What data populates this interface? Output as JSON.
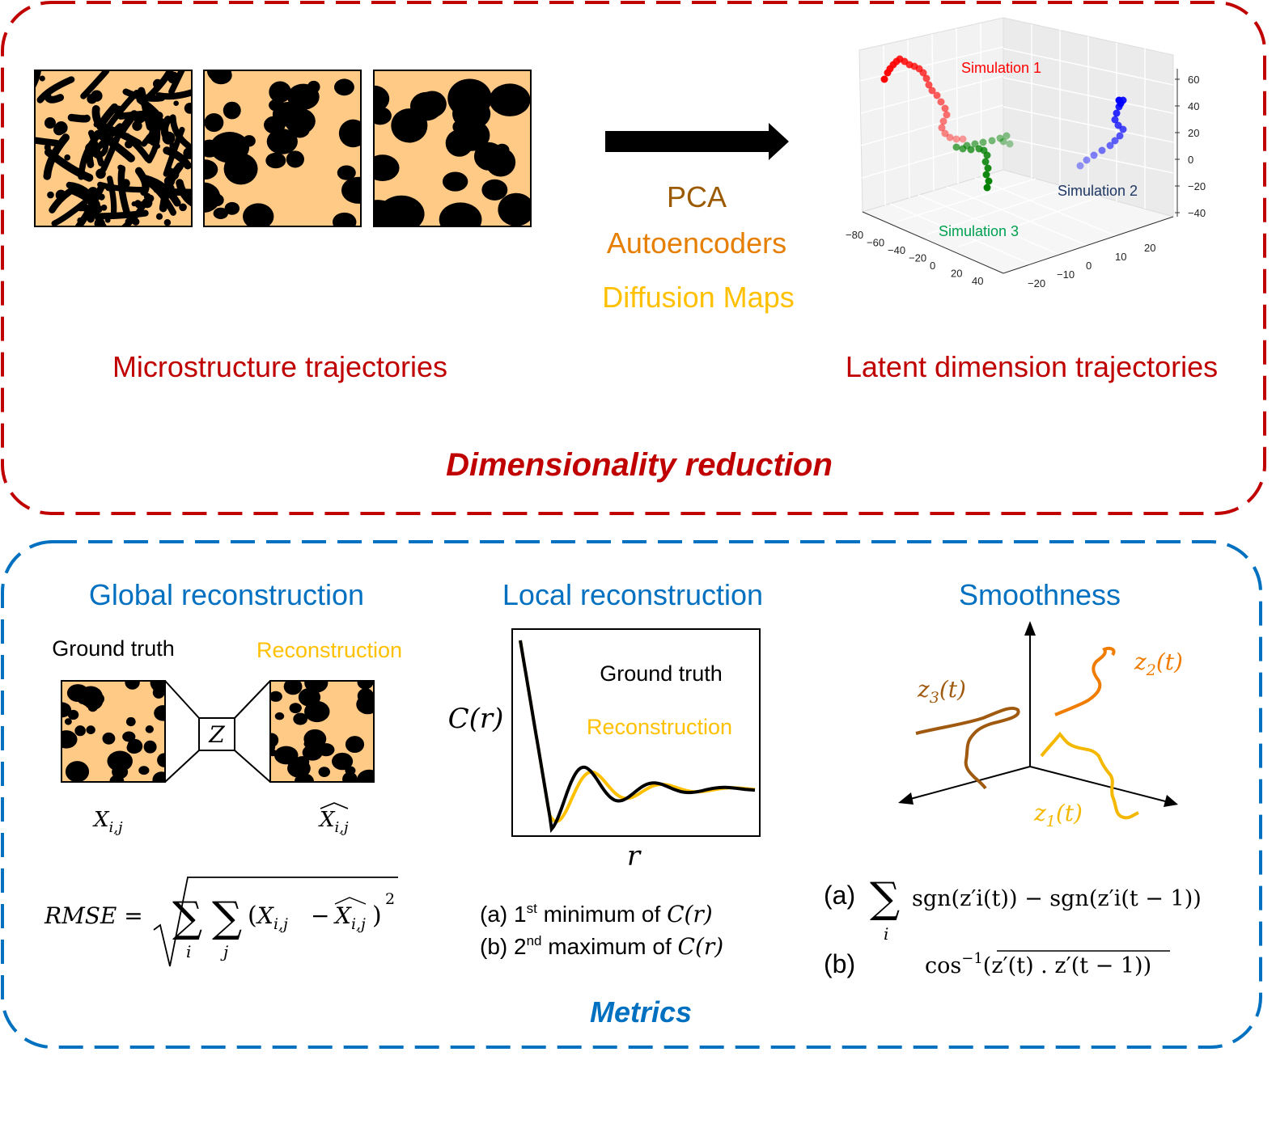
{
  "colors": {
    "red_frame": "#c00000",
    "blue_frame": "#0070c0",
    "micro_bg": "#ffc986",
    "blob": "#000000",
    "pca": "#9c5a00",
    "autoencoders": "#e67e00",
    "diffusion": "#ffc000",
    "sim1": "#ff0000",
    "sim2": "#0000ff",
    "sim3": "#008000",
    "z1": "#f5b800",
    "z2": "#f07c00",
    "z3": "#a05a10",
    "sim2_label": "#1f3864",
    "sim3_label": "#00a050"
  },
  "top": {
    "title": "Dimensionality reduction",
    "left_caption": "Microstructure trajectories",
    "right_caption": "Latent dimension trajectories",
    "methods": [
      "PCA",
      "Autoencoders",
      "Diffusion Maps"
    ],
    "plot3d": {
      "labels": {
        "sim1": "Simulation 1",
        "sim2": "Simulation 2",
        "sim3": "Simulation 3"
      },
      "z_ticks": [
        "60",
        "40",
        "20",
        "0",
        "−20",
        "−40"
      ],
      "x_ticks": [
        "−80",
        "−60",
        "−40",
        "−20",
        "0",
        "20",
        "40"
      ],
      "y_ticks": [
        "−20",
        "−10",
        "0",
        "10",
        "20"
      ]
    }
  },
  "bottom": {
    "title": "Metrics",
    "global": {
      "heading": "Global reconstruction",
      "ground_truth": "Ground truth",
      "reconstruction": "Reconstruction",
      "z_label": "Z",
      "x_label": "X",
      "x_sub": "i,j",
      "rmse_label": "RMSE ="
    },
    "local": {
      "heading": "Local reconstruction",
      "legend_truth": "Ground truth",
      "legend_recon": "Reconstruction",
      "ylabel": "C(r)",
      "xlabel": "r",
      "item_a_prefix": "(a)  1",
      "item_a_sup": "st",
      "item_a_text": " minimum of ",
      "item_b_prefix": "(b)  2",
      "item_b_sup": "nd",
      "item_b_text": " maximum of ",
      "cr": "C(r)"
    },
    "smooth": {
      "heading": "Smoothness",
      "z1": "z",
      "z1_sub": "1",
      "z2": "z",
      "z2_sub": "2",
      "z3": "z",
      "z3_sub": "3",
      "t_arg": "(t)",
      "formula_a_label": "(a)",
      "formula_a": "sgn(z′i(t))  − sgn(z′i(t − 1))",
      "sum_sub": "i",
      "formula_b_label": "(b)",
      "formula_b_prefix": "cos",
      "formula_b_sup": "−1",
      "formula_b_body": "z′(t) . z′(t − 1)"
    }
  }
}
